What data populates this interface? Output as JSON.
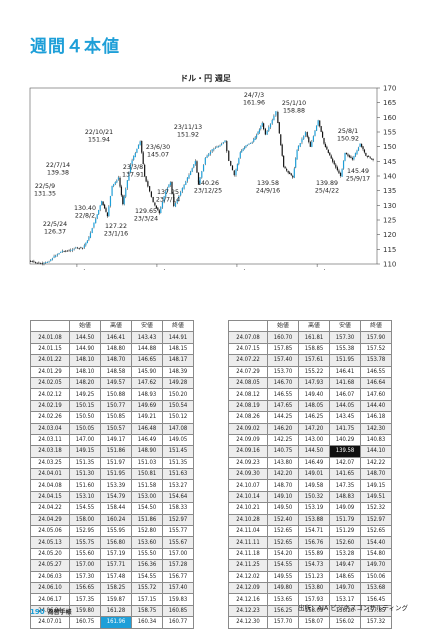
{
  "page": {
    "title": "週間４本値",
    "page_number": "190",
    "book_name": "為替手帳",
    "source": "出所：AIA ビジネスコンサルティング"
  },
  "chart_data": {
    "type": "line",
    "title": "ドル・円 週足",
    "ylim": [
      110,
      170
    ],
    "yticks": [
      110,
      115,
      120,
      125,
      130,
      135,
      140,
      145,
      150,
      155,
      160,
      165,
      170
    ],
    "xticklabels": [
      "2022年",
      "2023年",
      "2024年",
      "2025年"
    ],
    "xticks": [
      "2022-01-01",
      "2023-01-01",
      "2024-01-01",
      "2025-01-01"
    ],
    "xlim": [
      "2021-06-01",
      "2025-10-01"
    ],
    "series": [
      {
        "x": [
          "2021-06-01",
          "2021-07-01",
          "2021-08-01",
          "2021-09-01",
          "2021-10-01",
          "2021-11-01",
          "2021-12-01",
          "2022-01-01",
          "2022-02-01",
          "2022-03-01",
          "2022-03-25",
          "2022-04-28",
          "2022-05-24",
          "2022-06-15",
          "2022-07-14",
          "2022-08-02",
          "2022-09-07",
          "2022-10-21",
          "2022-11-10",
          "2022-12-20",
          "2023-01-16",
          "2023-02-15",
          "2023-03-08",
          "2023-03-24",
          "2023-05-10",
          "2023-06-30",
          "2023-07-14",
          "2023-08-15",
          "2023-09-15",
          "2023-10-20",
          "2023-11-13",
          "2023-12-01",
          "2023-12-25",
          "2024-01-20",
          "2024-02-15",
          "2024-03-15",
          "2024-04-10",
          "2024-04-29",
          "2024-05-15",
          "2024-06-15",
          "2024-07-03",
          "2024-08-05",
          "2024-09-16",
          "2024-10-05",
          "2024-11-14",
          "2024-12-05",
          "2025-01-10",
          "2025-02-05",
          "2025-03-10",
          "2025-04-22",
          "2025-05-12",
          "2025-06-15",
          "2025-07-20",
          "2025-08-15",
          "2025-09-17"
        ],
        "values": [
          111.0,
          110.5,
          110.0,
          111.0,
          113.0,
          114.5,
          114.5,
          115.5,
          115.5,
          119.0,
          124.0,
          131.35,
          126.37,
          136.5,
          139.38,
          130.4,
          144.0,
          151.94,
          140.0,
          131.0,
          127.22,
          135.0,
          137.91,
          129.65,
          137.0,
          145.07,
          137.25,
          146.0,
          149.0,
          150.5,
          151.92,
          145.0,
          140.26,
          148.0,
          150.5,
          151.5,
          155.0,
          158.0,
          154.0,
          159.0,
          161.96,
          143.0,
          139.58,
          149.0,
          155.0,
          150.0,
          158.88,
          151.0,
          146.0,
          139.89,
          148.0,
          145.5,
          150.92,
          147.0,
          145.49
        ]
      }
    ],
    "annotations": [
      {
        "label": "22/5/9",
        "value": "131.35"
      },
      {
        "label": "22/5/24",
        "value": "126.37"
      },
      {
        "label": "22/7/14",
        "value": "139.38"
      },
      {
        "label": "22/8/2",
        "value": "130.40"
      },
      {
        "label": "22/10/21",
        "value": "151.94"
      },
      {
        "label": "23/1/16",
        "value": "127.22"
      },
      {
        "label": "23/3/8",
        "value": "137.91"
      },
      {
        "label": "23/3/24",
        "value": "129.65"
      },
      {
        "label": "23/6/30",
        "value": "145.07"
      },
      {
        "label": "23/7/14",
        "value": "137.25"
      },
      {
        "label": "23/11/13",
        "value": "151.92"
      },
      {
        "label": "23/12/25",
        "value": "140.26"
      },
      {
        "label": "24/7/3",
        "value": "161.96"
      },
      {
        "label": "24/9/16",
        "value": "139.58"
      },
      {
        "label": "25/1/10",
        "value": "158.88"
      },
      {
        "label": "25/4/22",
        "value": "139.89"
      },
      {
        "label": "25/8/1",
        "value": "150.92"
      },
      {
        "label": "25/9/17",
        "value": "145.49"
      }
    ]
  },
  "table": {
    "headers": [
      "",
      "始値",
      "高値",
      "安値",
      "終値"
    ],
    "left": [
      [
        "24.01.08",
        "144.50",
        "146.41",
        "143.43",
        "144.91"
      ],
      [
        "24.01.15",
        "144.90",
        "148.80",
        "144.88",
        "148.15"
      ],
      [
        "24.01.22",
        "148.10",
        "148.70",
        "146.65",
        "148.17"
      ],
      [
        "24.01.29",
        "148.10",
        "148.58",
        "145.90",
        "148.39"
      ],
      [
        "24.02.05",
        "148.20",
        "149.57",
        "147.62",
        "149.28"
      ],
      [
        "24.02.12",
        "149.25",
        "150.88",
        "148.93",
        "150.20"
      ],
      [
        "24.02.19",
        "150.15",
        "150.77",
        "149.69",
        "150.54"
      ],
      [
        "24.02.26",
        "150.50",
        "150.85",
        "149.21",
        "150.12"
      ],
      [
        "24.03.04",
        "150.05",
        "150.57",
        "146.48",
        "147.08"
      ],
      [
        "24.03.11",
        "147.00",
        "149.17",
        "146.49",
        "149.05"
      ],
      [
        "24.03.18",
        "149.15",
        "151.86",
        "148.90",
        "151.45"
      ],
      [
        "24.03.25",
        "151.35",
        "151.97",
        "151.03",
        "151.35"
      ],
      [
        "24.04.01",
        "151.30",
        "151.95",
        "150.81",
        "151.63"
      ],
      [
        "24.04.08",
        "151.60",
        "153.39",
        "151.58",
        "153.27"
      ],
      [
        "24.04.15",
        "153.10",
        "154.79",
        "153.00",
        "154.64"
      ],
      [
        "24.04.22",
        "154.55",
        "158.44",
        "154.50",
        "158.33"
      ],
      [
        "24.04.29",
        "158.00",
        "160.24",
        "151.86",
        "152.97"
      ],
      [
        "24.05.06",
        "152.95",
        "155.95",
        "152.80",
        "155.77"
      ],
      [
        "24.05.13",
        "155.75",
        "156.80",
        "153.60",
        "155.67"
      ],
      [
        "24.05.20",
        "155.60",
        "157.19",
        "155.50",
        "157.00"
      ],
      [
        "24.05.27",
        "157.00",
        "157.71",
        "156.36",
        "157.28"
      ],
      [
        "24.06.03",
        "157.30",
        "157.48",
        "154.55",
        "156.77"
      ],
      [
        "24.06.10",
        "156.65",
        "158.25",
        "155.72",
        "157.40"
      ],
      [
        "24.06.17",
        "157.35",
        "159.87",
        "157.15",
        "159.83"
      ],
      [
        "24.06.24",
        "159.80",
        "161.28",
        "158.75",
        "160.85"
      ],
      [
        "24.07.01",
        "160.75",
        "161.96",
        "160.34",
        "160.77"
      ]
    ],
    "right": [
      [
        "24.07.08",
        "160.70",
        "161.81",
        "157.30",
        "157.90"
      ],
      [
        "24.07.15",
        "157.85",
        "158.85",
        "155.38",
        "157.52"
      ],
      [
        "24.07.22",
        "157.40",
        "157.61",
        "151.95",
        "153.78"
      ],
      [
        "24.07.29",
        "153.70",
        "155.22",
        "146.41",
        "146.55"
      ],
      [
        "24.08.05",
        "146.70",
        "147.93",
        "141.68",
        "146.64"
      ],
      [
        "24.08.12",
        "146.55",
        "149.40",
        "146.07",
        "147.60"
      ],
      [
        "24.08.19",
        "147.65",
        "148.05",
        "144.05",
        "144.40"
      ],
      [
        "24.08.26",
        "144.25",
        "146.25",
        "143.45",
        "146.18"
      ],
      [
        "24.09.02",
        "146.20",
        "147.20",
        "141.75",
        "142.30"
      ],
      [
        "24.09.09",
        "142.25",
        "143.00",
        "140.29",
        "140.83"
      ],
      [
        "24.09.16",
        "140.75",
        "144.50",
        "139.58",
        "144.10"
      ],
      [
        "24.09.23",
        "143.80",
        "146.49",
        "142.07",
        "142.22"
      ],
      [
        "24.09.30",
        "142.20",
        "149.01",
        "141.65",
        "148.70"
      ],
      [
        "24.10.07",
        "148.70",
        "149.58",
        "147.35",
        "149.15"
      ],
      [
        "24.10.14",
        "149.10",
        "150.32",
        "148.83",
        "149.51"
      ],
      [
        "24.10.21",
        "149.50",
        "153.19",
        "149.09",
        "152.32"
      ],
      [
        "24.10.28",
        "152.40",
        "153.88",
        "151.79",
        "152.97"
      ],
      [
        "24.11.04",
        "152.65",
        "154.71",
        "151.29",
        "152.65"
      ],
      [
        "24.11.11",
        "152.65",
        "156.76",
        "152.60",
        "154.40"
      ],
      [
        "24.11.18",
        "154.20",
        "155.89",
        "153.28",
        "154.80"
      ],
      [
        "24.11.25",
        "154.55",
        "154.73",
        "149.47",
        "149.70"
      ],
      [
        "24.12.02",
        "149.55",
        "151.23",
        "148.65",
        "150.06"
      ],
      [
        "24.12.09",
        "149.80",
        "153.80",
        "149.70",
        "153.68"
      ],
      [
        "24.12.16",
        "153.65",
        "157.93",
        "153.17",
        "156.45"
      ],
      [
        "24.12.23",
        "156.25",
        "158.09",
        "156.20",
        "157.85"
      ],
      [
        "24.12.30",
        "157.70",
        "158.07",
        "156.02",
        "157.32"
      ]
    ]
  }
}
